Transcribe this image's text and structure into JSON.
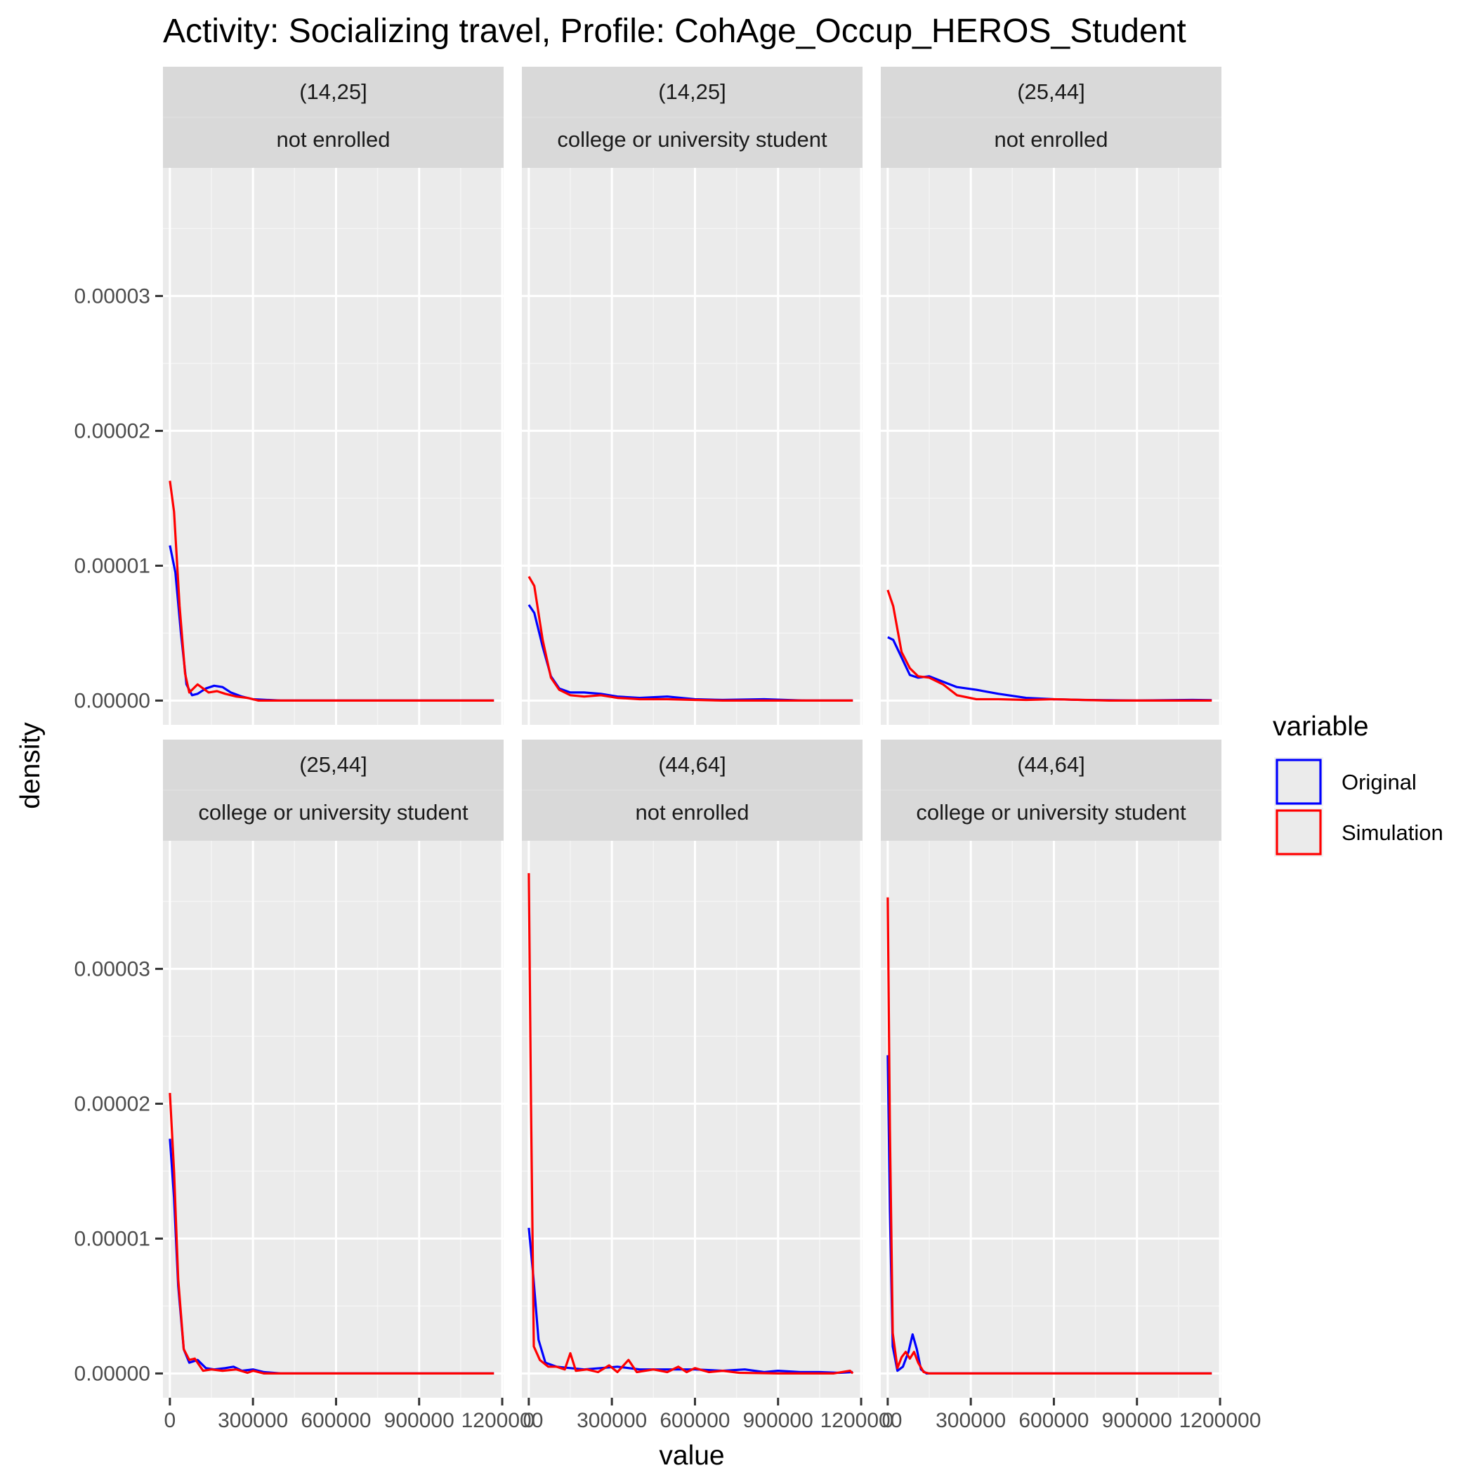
{
  "chart_data": {
    "type": "line",
    "title": "Activity: Socializing travel, Profile: CohAge_Occup_HEROS_Student",
    "xlabel": "value",
    "ylabel": "density",
    "xlim": [
      -25000,
      1205000
    ],
    "ylim": [
      -1.8e-06,
      3.95e-05
    ],
    "x_ticks": [
      0,
      300000,
      600000,
      900000,
      1200000
    ],
    "x_tick_labels": [
      "0",
      "300000",
      "600000",
      "900000",
      "1200000"
    ],
    "y_ticks": [
      0,
      1e-05,
      2e-05,
      3e-05
    ],
    "y_tick_labels": [
      "0.00000",
      "0.00001",
      "0.00002",
      "0.00003"
    ],
    "grid": true,
    "legend": {
      "title": "variable",
      "position": "right",
      "entries": [
        {
          "name": "Original",
          "color": "#0000ff"
        },
        {
          "name": "Simulation",
          "color": "#ff0000"
        }
      ]
    },
    "panels": [
      {
        "strip": [
          "(14,25]",
          "not enrolled"
        ],
        "series": [
          {
            "name": "Original",
            "color": "#0000ff",
            "points": [
              [
                0,
                1.15e-05
              ],
              [
                20000,
                9.5e-06
              ],
              [
                40000,
                5e-06
              ],
              [
                60000,
                1.2e-06
              ],
              [
                80000,
                4e-07
              ],
              [
                100000,
                5e-07
              ],
              [
                130000,
                9e-07
              ],
              [
                160000,
                1.1e-06
              ],
              [
                190000,
                1e-06
              ],
              [
                220000,
                6e-07
              ],
              [
                260000,
                3e-07
              ],
              [
                300000,
                1e-07
              ],
              [
                400000,
                0
              ],
              [
                1170000,
                0
              ]
            ]
          },
          {
            "name": "Simulation",
            "color": "#ff0000",
            "points": [
              [
                0,
                1.63e-05
              ],
              [
                15000,
                1.4e-05
              ],
              [
                35000,
                7e-06
              ],
              [
                55000,
                2e-06
              ],
              [
                70000,
                6e-07
              ],
              [
                85000,
                9e-07
              ],
              [
                100000,
                1.2e-06
              ],
              [
                120000,
                9e-07
              ],
              [
                140000,
                6e-07
              ],
              [
                170000,
                7e-07
              ],
              [
                200000,
                5e-07
              ],
              [
                240000,
                3e-07
              ],
              [
                280000,
                2e-07
              ],
              [
                320000,
                0
              ],
              [
                1170000,
                0
              ]
            ]
          }
        ]
      },
      {
        "strip": [
          "(14,25]",
          "college or university student"
        ],
        "series": [
          {
            "name": "Original",
            "color": "#0000ff",
            "points": [
              [
                0,
                7.1e-06
              ],
              [
                20000,
                6.5e-06
              ],
              [
                50000,
                4e-06
              ],
              [
                80000,
                1.8e-06
              ],
              [
                110000,
                9e-07
              ],
              [
                150000,
                6e-07
              ],
              [
                200000,
                6e-07
              ],
              [
                260000,
                5e-07
              ],
              [
                320000,
                3e-07
              ],
              [
                400000,
                2e-07
              ],
              [
                500000,
                3e-07
              ],
              [
                600000,
                1e-07
              ],
              [
                700000,
                5e-08
              ],
              [
                850000,
                1e-07
              ],
              [
                1000000,
                0
              ],
              [
                1170000,
                0
              ]
            ]
          },
          {
            "name": "Simulation",
            "color": "#ff0000",
            "points": [
              [
                0,
                9.2e-06
              ],
              [
                20000,
                8.5e-06
              ],
              [
                50000,
                4.5e-06
              ],
              [
                80000,
                1.7e-06
              ],
              [
                110000,
                8e-07
              ],
              [
                150000,
                4e-07
              ],
              [
                200000,
                3e-07
              ],
              [
                260000,
                4e-07
              ],
              [
                320000,
                2e-07
              ],
              [
                400000,
                1e-07
              ],
              [
                500000,
                1e-07
              ],
              [
                600000,
                5e-08
              ],
              [
                700000,
                0
              ],
              [
                1170000,
                0
              ]
            ]
          }
        ]
      },
      {
        "strip": [
          "(25,44]",
          "not enrolled"
        ],
        "series": [
          {
            "name": "Original",
            "color": "#0000ff",
            "points": [
              [
                0,
                4.7e-06
              ],
              [
                20000,
                4.5e-06
              ],
              [
                50000,
                3.2e-06
              ],
              [
                80000,
                1.9e-06
              ],
              [
                110000,
                1.7e-06
              ],
              [
                150000,
                1.8e-06
              ],
              [
                200000,
                1.4e-06
              ],
              [
                250000,
                1e-06
              ],
              [
                320000,
                8e-07
              ],
              [
                400000,
                5e-07
              ],
              [
                500000,
                2e-07
              ],
              [
                600000,
                1e-07
              ],
              [
                700000,
                5e-08
              ],
              [
                900000,
                0
              ],
              [
                1100000,
                5e-08
              ],
              [
                1170000,
                3e-08
              ]
            ]
          },
          {
            "name": "Simulation",
            "color": "#ff0000",
            "points": [
              [
                0,
                8.2e-06
              ],
              [
                20000,
                7e-06
              ],
              [
                50000,
                3.6e-06
              ],
              [
                80000,
                2.4e-06
              ],
              [
                110000,
                1.8e-06
              ],
              [
                150000,
                1.7e-06
              ],
              [
                200000,
                1.2e-06
              ],
              [
                250000,
                4e-07
              ],
              [
                320000,
                1e-07
              ],
              [
                400000,
                1e-07
              ],
              [
                500000,
                5e-08
              ],
              [
                600000,
                1e-07
              ],
              [
                700000,
                5e-08
              ],
              [
                800000,
                0
              ],
              [
                1170000,
                0
              ]
            ]
          }
        ]
      },
      {
        "strip": [
          "(25,44]",
          "college or university student"
        ],
        "series": [
          {
            "name": "Original",
            "color": "#0000ff",
            "points": [
              [
                0,
                1.74e-05
              ],
              [
                15000,
                1.3e-05
              ],
              [
                30000,
                6.5e-06
              ],
              [
                50000,
                1.8e-06
              ],
              [
                70000,
                8e-07
              ],
              [
                100000,
                1e-06
              ],
              [
                130000,
                4e-07
              ],
              [
                160000,
                3e-07
              ],
              [
                200000,
                4e-07
              ],
              [
                230000,
                5e-07
              ],
              [
                260000,
                2e-07
              ],
              [
                300000,
                3e-07
              ],
              [
                340000,
                1e-07
              ],
              [
                400000,
                0
              ],
              [
                1170000,
                0
              ]
            ]
          },
          {
            "name": "Simulation",
            "color": "#ff0000",
            "points": [
              [
                0,
                2.08e-05
              ],
              [
                15000,
                1.5e-05
              ],
              [
                30000,
                7e-06
              ],
              [
                50000,
                1.8e-06
              ],
              [
                70000,
                1e-06
              ],
              [
                90000,
                1.1e-06
              ],
              [
                120000,
                2e-07
              ],
              [
                150000,
                3e-07
              ],
              [
                190000,
                2e-07
              ],
              [
                240000,
                3e-07
              ],
              [
                280000,
                5e-08
              ],
              [
                300000,
                2e-07
              ],
              [
                340000,
                0
              ],
              [
                1170000,
                0
              ]
            ]
          }
        ]
      },
      {
        "strip": [
          "(44,64]",
          "not enrolled"
        ],
        "series": [
          {
            "name": "Original",
            "color": "#0000ff",
            "points": [
              [
                0,
                1.08e-05
              ],
              [
                15000,
                7.5e-06
              ],
              [
                35000,
                2.5e-06
              ],
              [
                60000,
                8e-07
              ],
              [
                100000,
                5e-07
              ],
              [
                150000,
                4e-07
              ],
              [
                200000,
                3e-07
              ],
              [
                260000,
                4e-07
              ],
              [
                320000,
                5e-07
              ],
              [
                400000,
                3e-07
              ],
              [
                500000,
                3e-07
              ],
              [
                600000,
                3e-07
              ],
              [
                700000,
                2e-07
              ],
              [
                780000,
                3e-07
              ],
              [
                850000,
                1e-07
              ],
              [
                900000,
                2e-07
              ],
              [
                980000,
                1e-07
              ],
              [
                1050000,
                1e-07
              ],
              [
                1120000,
                5e-08
              ],
              [
                1170000,
                1e-07
              ]
            ]
          },
          {
            "name": "Simulation",
            "color": "#ff0000",
            "points": [
              [
                0,
                3.71e-05
              ],
              [
                8000,
                2e-05
              ],
              [
                18000,
                2e-06
              ],
              [
                40000,
                1e-06
              ],
              [
                70000,
                5e-07
              ],
              [
                100000,
                5e-07
              ],
              [
                130000,
                3e-07
              ],
              [
                150000,
                1.5e-06
              ],
              [
                170000,
                2e-07
              ],
              [
                210000,
                3e-07
              ],
              [
                250000,
                1e-07
              ],
              [
                290000,
                6e-07
              ],
              [
                320000,
                1e-07
              ],
              [
                360000,
                1e-06
              ],
              [
                390000,
                1e-07
              ],
              [
                450000,
                3e-07
              ],
              [
                500000,
                1e-07
              ],
              [
                540000,
                5e-07
              ],
              [
                570000,
                1e-07
              ],
              [
                600000,
                4e-07
              ],
              [
                650000,
                1e-07
              ],
              [
                700000,
                2e-07
              ],
              [
                760000,
                5e-08
              ],
              [
                900000,
                0
              ],
              [
                1100000,
                0
              ],
              [
                1160000,
                2e-07
              ],
              [
                1170000,
                0
              ]
            ]
          }
        ]
      },
      {
        "strip": [
          "(44,64]",
          "college or university student"
        ],
        "series": [
          {
            "name": "Original",
            "color": "#0000ff",
            "points": [
              [
                0,
                2.36e-05
              ],
              [
                8000,
                1.2e-05
              ],
              [
                18000,
                2e-06
              ],
              [
                35000,
                2e-07
              ],
              [
                55000,
                5e-07
              ],
              [
                75000,
                1.6e-06
              ],
              [
                90000,
                2.9e-06
              ],
              [
                105000,
                1.8e-06
              ],
              [
                120000,
                3e-07
              ],
              [
                140000,
                0
              ],
              [
                1170000,
                0
              ]
            ]
          },
          {
            "name": "Simulation",
            "color": "#ff0000",
            "points": [
              [
                0,
                3.53e-05
              ],
              [
                8000,
                1.8e-05
              ],
              [
                18000,
                3e-06
              ],
              [
                35000,
                4e-07
              ],
              [
                50000,
                1.2e-06
              ],
              [
                65000,
                1.6e-06
              ],
              [
                80000,
                1.1e-06
              ],
              [
                95000,
                1.6e-06
              ],
              [
                110000,
                8e-07
              ],
              [
                130000,
                1e-07
              ],
              [
                150000,
                0
              ],
              [
                1170000,
                0
              ]
            ]
          }
        ]
      }
    ]
  }
}
